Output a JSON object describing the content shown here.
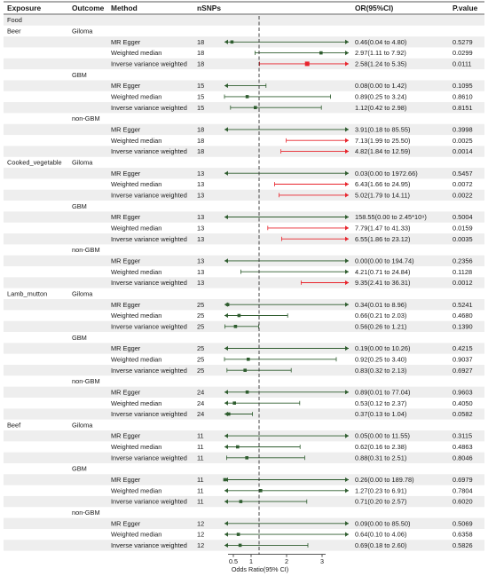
{
  "headers": {
    "exposure": "Exposure",
    "outcome": "Outcome",
    "method": "Method",
    "nsnps": "nSNPs",
    "or": "OR(95%CI)",
    "pvalue": "P.value"
  },
  "colors": {
    "significant": "#e8242c",
    "nonsignificant": "#2f5d2f",
    "band": "#eeeeee",
    "reference_line": "#333333"
  },
  "chart_data": {
    "type": "forest",
    "title": "",
    "xlabel": "Odds Ratio(95% CI)",
    "x_ticks": [
      0.5,
      1,
      2,
      3
    ],
    "x_ticklabels": [
      "0.5",
      "1",
      "2",
      "3"
    ],
    "reference_value": 1,
    "xlim": [
      0.25,
      3.75
    ],
    "category_row": "Food",
    "exposures": [
      {
        "name": "Beer",
        "outcomes": [
          {
            "name": "Giloma",
            "rows": [
              {
                "method": "MR Egger",
                "nsnps": 18,
                "or": 0.46,
                "lo": 0.04,
                "hi": 4.8,
                "or_text": "0.46(0.04 to 4.80)",
                "p": "0.5279",
                "sig": false
              },
              {
                "method": "Weighted median",
                "nsnps": 18,
                "or": 2.97,
                "lo": 1.11,
                "hi": 7.92,
                "or_text": "2.97(1.11 to 7.92)",
                "p": "0.0299",
                "sig": false
              },
              {
                "method": "Inverse variance weighted",
                "nsnps": 18,
                "or": 2.58,
                "lo": 1.24,
                "hi": 5.35,
                "or_text": "2.58(1.24 to 5.35)",
                "p": "0.0111",
                "sig": true
              }
            ]
          },
          {
            "name": "GBM",
            "rows": [
              {
                "method": "MR Egger",
                "nsnps": 15,
                "or": 0.08,
                "lo": 0.0,
                "hi": 1.42,
                "or_text": "0.08(0.00 to 1.42)",
                "p": "0.1095",
                "sig": false
              },
              {
                "method": "Weighted median",
                "nsnps": 15,
                "or": 0.89,
                "lo": 0.25,
                "hi": 3.24,
                "or_text": "0.89(0.25 to 3.24)",
                "p": "0.8610",
                "sig": false
              },
              {
                "method": "Inverse variance weighted",
                "nsnps": 15,
                "or": 1.12,
                "lo": 0.42,
                "hi": 2.98,
                "or_text": "1.12(0.42 to 2.98)",
                "p": "0.8151",
                "sig": false
              }
            ]
          },
          {
            "name": "non-GBM",
            "rows": [
              {
                "method": "MR Egger",
                "nsnps": 18,
                "or": 3.91,
                "lo": 0.18,
                "hi": 85.55,
                "or_text": "3.91(0.18 to 85.55)",
                "p": "0.3998",
                "sig": false
              },
              {
                "method": "Weighted median",
                "nsnps": 18,
                "or": 7.13,
                "lo": 1.99,
                "hi": 25.5,
                "or_text": "7.13(1.99 to 25.50)",
                "p": "0.0025",
                "sig": true
              },
              {
                "method": "Inverse variance weighted",
                "nsnps": 18,
                "or": 4.82,
                "lo": 1.84,
                "hi": 12.59,
                "or_text": "4.82(1.84 to 12.59)",
                "p": "0.0014",
                "sig": true
              }
            ]
          }
        ]
      },
      {
        "name": "Cooked_vegetable",
        "outcomes": [
          {
            "name": "Giloma",
            "rows": [
              {
                "method": "MR Egger",
                "nsnps": 13,
                "or": 0.03,
                "lo": 0.0,
                "hi": 1972.66,
                "or_text": "0.03(0.00 to 1972.66)",
                "p": "0.5457",
                "sig": false
              },
              {
                "method": "Weighted median",
                "nsnps": 13,
                "or": 6.43,
                "lo": 1.66,
                "hi": 24.95,
                "or_text": "6.43(1.66 to 24.95)",
                "p": "0.0072",
                "sig": true
              },
              {
                "method": "Inverse variance weighted",
                "nsnps": 13,
                "or": 5.02,
                "lo": 1.79,
                "hi": 14.11,
                "or_text": "5.02(1.79 to 14.11)",
                "p": "0.0022",
                "sig": true
              }
            ]
          },
          {
            "name": "GBM",
            "rows": [
              {
                "method": "MR Egger",
                "nsnps": 13,
                "or": 158.55,
                "lo": 0.0,
                "hi": 2450000000,
                "or_text": "158.55(0.00 to 2.45*10⁹)",
                "p": "0.5004",
                "sig": false
              },
              {
                "method": "Weighted median",
                "nsnps": 13,
                "or": 7.79,
                "lo": 1.47,
                "hi": 41.33,
                "or_text": "7.79(1.47 to 41.33)",
                "p": "0.0159",
                "sig": true
              },
              {
                "method": "Inverse variance weighted",
                "nsnps": 13,
                "or": 6.55,
                "lo": 1.86,
                "hi": 23.12,
                "or_text": "6.55(1.86 to 23.12)",
                "p": "0.0035",
                "sig": true
              }
            ]
          },
          {
            "name": "non-GBM",
            "rows": [
              {
                "method": "MR Egger",
                "nsnps": 13,
                "or": 0.0,
                "lo": 0.0,
                "hi": 194.74,
                "or_text": "0.00(0.00 to 194.74)",
                "p": "0.2356",
                "sig": false
              },
              {
                "method": "Weighted median",
                "nsnps": 13,
                "or": 4.21,
                "lo": 0.71,
                "hi": 24.84,
                "or_text": "4.21(0.71 to 24.84)",
                "p": "0.1128",
                "sig": false
              },
              {
                "method": "Inverse variance weighted",
                "nsnps": 13,
                "or": 9.35,
                "lo": 2.41,
                "hi": 36.31,
                "or_text": "9.35(2.41 to 36.31)",
                "p": "0.0012",
                "sig": true
              }
            ]
          }
        ]
      },
      {
        "name": "Lamb_mutton",
        "outcomes": [
          {
            "name": "Giloma",
            "rows": [
              {
                "method": "MR Egger",
                "nsnps": 25,
                "or": 0.34,
                "lo": 0.01,
                "hi": 8.96,
                "or_text": "0.34(0.01 to 8.96)",
                "p": "0.5241",
                "sig": false
              },
              {
                "method": "Weighted median",
                "nsnps": 25,
                "or": 0.66,
                "lo": 0.21,
                "hi": 2.03,
                "or_text": "0.66(0.21 to 2.03)",
                "p": "0.4680",
                "sig": false
              },
              {
                "method": "Inverse variance weighted",
                "nsnps": 25,
                "or": 0.56,
                "lo": 0.26,
                "hi": 1.21,
                "or_text": "0.56(0.26 to 1.21)",
                "p": "0.1390",
                "sig": false
              }
            ]
          },
          {
            "name": "GBM",
            "rows": [
              {
                "method": "MR Egger",
                "nsnps": 25,
                "or": 0.19,
                "lo": 0.0,
                "hi": 10.26,
                "or_text": "0.19(0.00 to 10.26)",
                "p": "0.4215",
                "sig": false
              },
              {
                "method": "Weighted median",
                "nsnps": 25,
                "or": 0.92,
                "lo": 0.25,
                "hi": 3.4,
                "or_text": "0.92(0.25 to 3.40)",
                "p": "0.9037",
                "sig": false
              },
              {
                "method": "Inverse variance weighted",
                "nsnps": 25,
                "or": 0.83,
                "lo": 0.32,
                "hi": 2.13,
                "or_text": "0.83(0.32 to 2.13)",
                "p": "0.6927",
                "sig": false
              }
            ]
          },
          {
            "name": "non-GBM",
            "rows": [
              {
                "method": "MR Egger",
                "nsnps": 24,
                "or": 0.89,
                "lo": 0.01,
                "hi": 77.04,
                "or_text": "0.89(0.01 to 77.04)",
                "p": "0.9603",
                "sig": false
              },
              {
                "method": "Weighted median",
                "nsnps": 24,
                "or": 0.53,
                "lo": 0.12,
                "hi": 2.37,
                "or_text": "0.53(0.12 to 2.37)",
                "p": "0.4050",
                "sig": false
              },
              {
                "method": "Inverse variance weighted",
                "nsnps": 24,
                "or": 0.37,
                "lo": 0.13,
                "hi": 1.04,
                "or_text": "0.37(0.13 to 1.04)",
                "p": "0.0582",
                "sig": false
              }
            ]
          }
        ]
      },
      {
        "name": "Beef",
        "outcomes": [
          {
            "name": "Giloma",
            "rows": [
              {
                "method": "MR Egger",
                "nsnps": 11,
                "or": 0.05,
                "lo": 0.0,
                "hi": 11.55,
                "or_text": "0.05(0.00 to 11.55)",
                "p": "0.3115",
                "sig": false
              },
              {
                "method": "Weighted median",
                "nsnps": 11,
                "or": 0.62,
                "lo": 0.16,
                "hi": 2.38,
                "or_text": "0.62(0.16 to 2.38)",
                "p": "0.4863",
                "sig": false
              },
              {
                "method": "Inverse variance weighted",
                "nsnps": 11,
                "or": 0.88,
                "lo": 0.31,
                "hi": 2.51,
                "or_text": "0.88(0.31 to 2.51)",
                "p": "0.8046",
                "sig": false
              }
            ]
          },
          {
            "name": "GBM",
            "rows": [
              {
                "method": "MR Egger",
                "nsnps": 11,
                "or": 0.26,
                "lo": 0.0,
                "hi": 189.78,
                "or_text": "0.26(0.00 to 189.78)",
                "p": "0.6979",
                "sig": false
              },
              {
                "method": "Weighted median",
                "nsnps": 11,
                "or": 1.27,
                "lo": 0.23,
                "hi": 6.91,
                "or_text": "1.27(0.23 to 6.91)",
                "p": "0.7804",
                "sig": false
              },
              {
                "method": "Inverse variance weighted",
                "nsnps": 11,
                "or": 0.71,
                "lo": 0.2,
                "hi": 2.57,
                "or_text": "0.71(0.20 to 2.57)",
                "p": "0.6020",
                "sig": false
              }
            ]
          },
          {
            "name": "non-GBM",
            "rows": [
              {
                "method": "MR Egger",
                "nsnps": 12,
                "or": 0.09,
                "lo": 0.0,
                "hi": 85.5,
                "or_text": "0.09(0.00 to 85.50)",
                "p": "0.5069",
                "sig": false
              },
              {
                "method": "Weighted median",
                "nsnps": 12,
                "or": 0.64,
                "lo": 0.1,
                "hi": 4.06,
                "or_text": "0.64(0.10 to 4.06)",
                "p": "0.6358",
                "sig": false
              },
              {
                "method": "Inverse variance weighted",
                "nsnps": 12,
                "or": 0.69,
                "lo": 0.18,
                "hi": 2.6,
                "or_text": "0.69(0.18 to 2.60)",
                "p": "0.5826",
                "sig": false
              }
            ]
          }
        ]
      }
    ]
  }
}
